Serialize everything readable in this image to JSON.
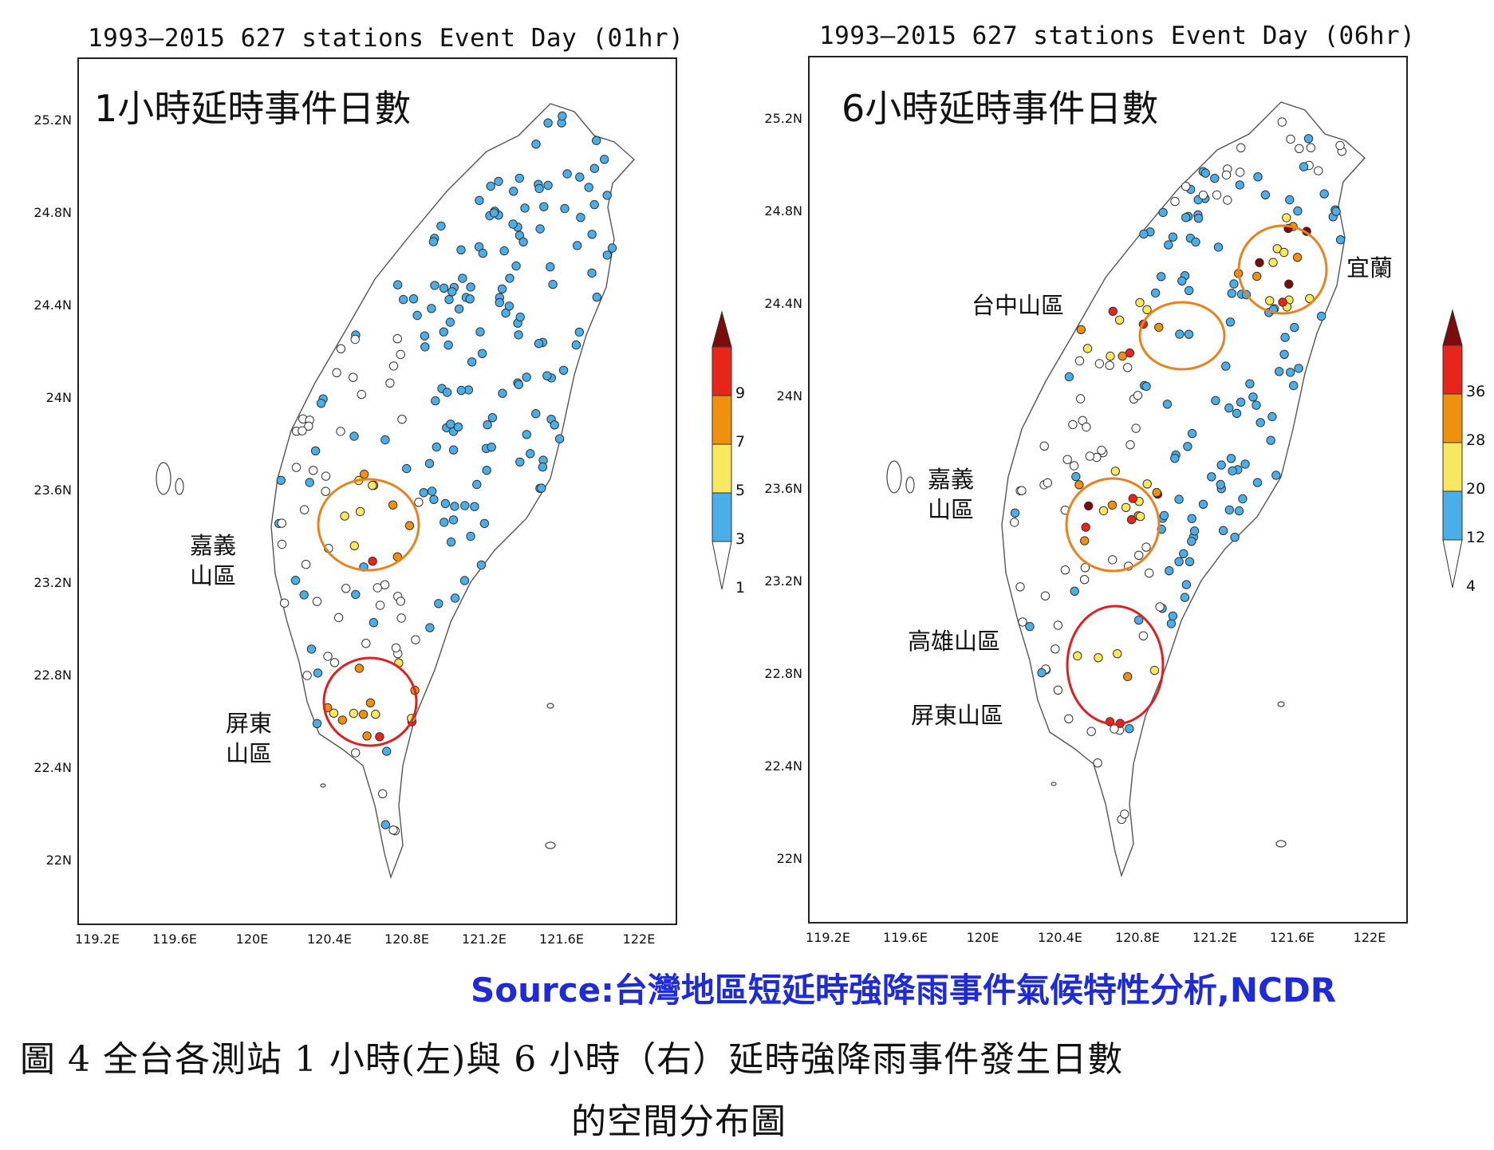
{
  "maps": [
    {
      "title": "1993–2015   627 stations Event Day (01hr)",
      "panel_label": "1小時延時事件日數",
      "lat_ticks": [
        "25.2N",
        "24.8N",
        "24.4N",
        "24N",
        "23.6N",
        "23.2N",
        "22.8N",
        "22.4N",
        "22N"
      ],
      "lon_ticks": [
        "119.2E",
        "119.6E",
        "120E",
        "120.4E",
        "120.8E",
        "121.2E",
        "121.6E",
        "122E"
      ],
      "colorbar_ticks": [
        "9",
        "7",
        "5",
        "3",
        "1"
      ],
      "regions": [
        {
          "name": "嘉義\n山區",
          "circle_color": "#e8821e"
        },
        {
          "name": "屏東\n山區",
          "circle_color": "#e02020"
        }
      ]
    },
    {
      "title": "1993–2015   627 stations Event Day (06hr)",
      "panel_label": "6小時延時事件日數",
      "lat_ticks": [
        "25.2N",
        "24.8N",
        "24.4N",
        "24N",
        "23.6N",
        "23.2N",
        "22.8N",
        "22.4N",
        "22N"
      ],
      "lon_ticks": [
        "119.2E",
        "119.6E",
        "120E",
        "120.4E",
        "120.8E",
        "121.2E",
        "121.6E",
        "122E"
      ],
      "colorbar_ticks": [
        "36",
        "28",
        "20",
        "12",
        "4"
      ],
      "regions": [
        {
          "name": "宜蘭",
          "circle_color": "#e8821e"
        },
        {
          "name": "台中山區",
          "circle_color": "#e8821e"
        },
        {
          "name": "嘉義\n山區",
          "circle_color": "#e8821e"
        },
        {
          "name": "高雄山區",
          "circle_color": "#e02020"
        },
        {
          "name": "屏東山區",
          "circle_color": "#e02020"
        }
      ]
    }
  ],
  "colorbar_colors": [
    "#ffffff",
    "#4aaee8",
    "#f7e860",
    "#f0900f",
    "#e8251a",
    "#7a0c0c"
  ],
  "source_text": "Source:台灣地區短延時強降雨事件氣候特性分析,NCDR",
  "caption_line1": "圖 4  全台各測站 1 小時(左)與 6 小時（右）延時強降雨事件發生日數",
  "caption_line2": "的空間分布圖"
}
